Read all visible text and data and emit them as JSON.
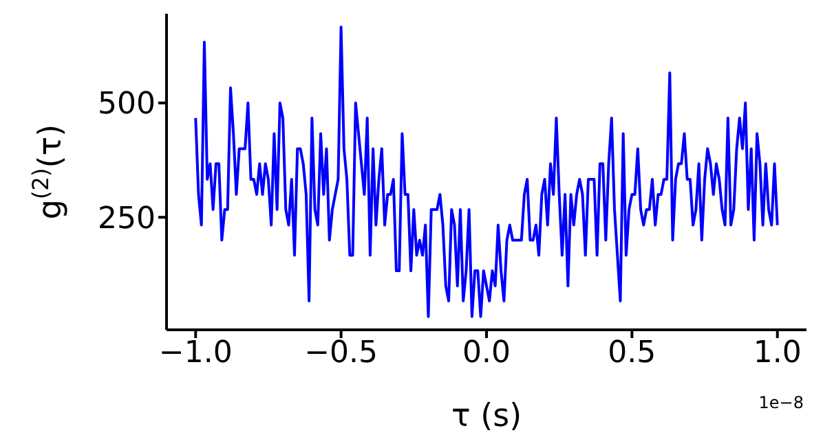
{
  "chart_data": {
    "type": "line",
    "xlabel": "τ (s)",
    "ylabel": "g$^{(2)}$(τ)",
    "annotations": [
      "1e−8"
    ],
    "x": [
      -1.0,
      -0.99,
      -0.98,
      -0.97,
      -0.96,
      -0.95,
      -0.94,
      -0.93,
      -0.92,
      -0.91,
      -0.9,
      -0.89,
      -0.88,
      -0.87,
      -0.86,
      -0.85,
      -0.84,
      -0.83,
      -0.82,
      -0.81,
      -0.8,
      -0.79,
      -0.78,
      -0.77,
      -0.76,
      -0.75,
      -0.74,
      -0.73,
      -0.72,
      -0.71,
      -0.7,
      -0.69,
      -0.68,
      -0.67,
      -0.66,
      -0.65,
      -0.64,
      -0.63,
      -0.62,
      -0.61,
      -0.6,
      -0.59,
      -0.58,
      -0.57,
      -0.56,
      -0.55,
      -0.54,
      -0.53,
      -0.52,
      -0.51,
      -0.5,
      -0.49,
      -0.48,
      -0.47,
      -0.46,
      -0.45,
      -0.44,
      -0.43,
      -0.42,
      -0.41,
      -0.4,
      -0.39,
      -0.38,
      -0.37,
      -0.36,
      -0.35,
      -0.34,
      -0.33,
      -0.32,
      -0.31,
      -0.3,
      -0.29,
      -0.28,
      -0.27,
      -0.26,
      -0.25,
      -0.24,
      -0.23,
      -0.22,
      -0.21,
      -0.2,
      -0.19,
      -0.18,
      -0.17,
      -0.16,
      -0.15,
      -0.14,
      -0.13,
      -0.12,
      -0.11,
      -0.1,
      -0.09,
      -0.08,
      -0.07,
      -0.06,
      -0.05,
      -0.04,
      -0.03,
      -0.02,
      -0.01,
      0.0,
      0.01,
      0.02,
      0.03,
      0.04,
      0.05,
      0.06,
      0.07,
      0.08,
      0.09,
      0.1,
      0.11,
      0.12,
      0.13,
      0.14,
      0.15,
      0.16,
      0.17,
      0.18,
      0.19,
      0.2,
      0.21,
      0.22,
      0.23,
      0.24,
      0.25,
      0.26,
      0.27,
      0.28,
      0.29,
      0.3,
      0.31,
      0.32,
      0.33,
      0.34,
      0.35,
      0.36,
      0.37,
      0.38,
      0.39,
      0.4,
      0.41,
      0.42,
      0.43,
      0.44,
      0.45,
      0.46,
      0.47,
      0.48,
      0.49,
      0.5,
      0.51,
      0.52,
      0.53,
      0.54,
      0.55,
      0.56,
      0.57,
      0.58,
      0.59,
      0.6,
      0.61,
      0.62,
      0.63,
      0.64,
      0.65,
      0.66,
      0.67,
      0.68,
      0.69,
      0.7,
      0.71,
      0.72,
      0.73,
      0.74,
      0.75,
      0.76,
      0.77,
      0.78,
      0.79,
      0.8,
      0.81,
      0.82,
      0.83,
      0.84,
      0.85,
      0.86,
      0.87,
      0.88,
      0.89,
      0.9,
      0.91,
      0.92,
      0.93,
      0.94,
      0.95,
      0.96,
      0.97,
      0.98,
      0.99,
      1.0
    ],
    "series": [
      {
        "color": "#0000ff",
        "values": [
          467,
          300,
          233,
          633,
          333,
          367,
          267,
          367,
          367,
          200,
          267,
          267,
          533,
          433,
          300,
          400,
          400,
          400,
          500,
          333,
          333,
          300,
          367,
          300,
          367,
          333,
          233,
          433,
          267,
          500,
          467,
          267,
          233,
          333,
          167,
          400,
          400,
          367,
          300,
          67,
          467,
          267,
          233,
          433,
          300,
          400,
          200,
          267,
          300,
          333,
          666,
          400,
          333,
          167,
          167,
          500,
          433,
          367,
          300,
          467,
          167,
          400,
          233,
          333,
          400,
          233,
          300,
          300,
          333,
          133,
          133,
          433,
          300,
          300,
          133,
          267,
          167,
          200,
          167,
          233,
          33,
          267,
          267,
          267,
          300,
          233,
          100,
          67,
          267,
          233,
          100,
          267,
          67,
          133,
          267,
          33,
          133,
          133,
          33,
          133,
          100,
          67,
          133,
          100,
          233,
          133,
          67,
          200,
          233,
          200,
          200,
          200,
          200,
          300,
          333,
          200,
          200,
          233,
          167,
          300,
          333,
          233,
          367,
          300,
          467,
          300,
          167,
          300,
          100,
          300,
          233,
          300,
          333,
          300,
          167,
          333,
          333,
          333,
          167,
          367,
          367,
          200,
          367,
          467,
          267,
          167,
          67,
          433,
          167,
          267,
          300,
          300,
          400,
          267,
          233,
          267,
          267,
          333,
          233,
          300,
          300,
          333,
          333,
          566,
          200,
          333,
          367,
          367,
          433,
          333,
          333,
          233,
          267,
          367,
          200,
          333,
          400,
          367,
          300,
          367,
          333,
          267,
          233,
          467,
          233,
          267,
          400,
          467,
          400,
          500,
          267,
          400,
          200,
          433,
          367,
          233,
          367,
          267,
          233,
          367,
          233
        ]
      }
    ],
    "xlim": [
      -1.1,
      1.1
    ],
    "xticks": [
      {
        "value": -1,
        "label": "−1.0"
      },
      {
        "value": -0.5,
        "label": "−0.5"
      },
      {
        "value": 0,
        "label": "0.0"
      },
      {
        "value": 0.5,
        "label": "0.5"
      },
      {
        "value": 1,
        "label": "1.0"
      }
    ],
    "ylim": [
      4,
      695
    ],
    "yticks": [
      250,
      500
    ],
    "grid": false,
    "legend": false,
    "marker": "none",
    "line_style": "solid"
  }
}
